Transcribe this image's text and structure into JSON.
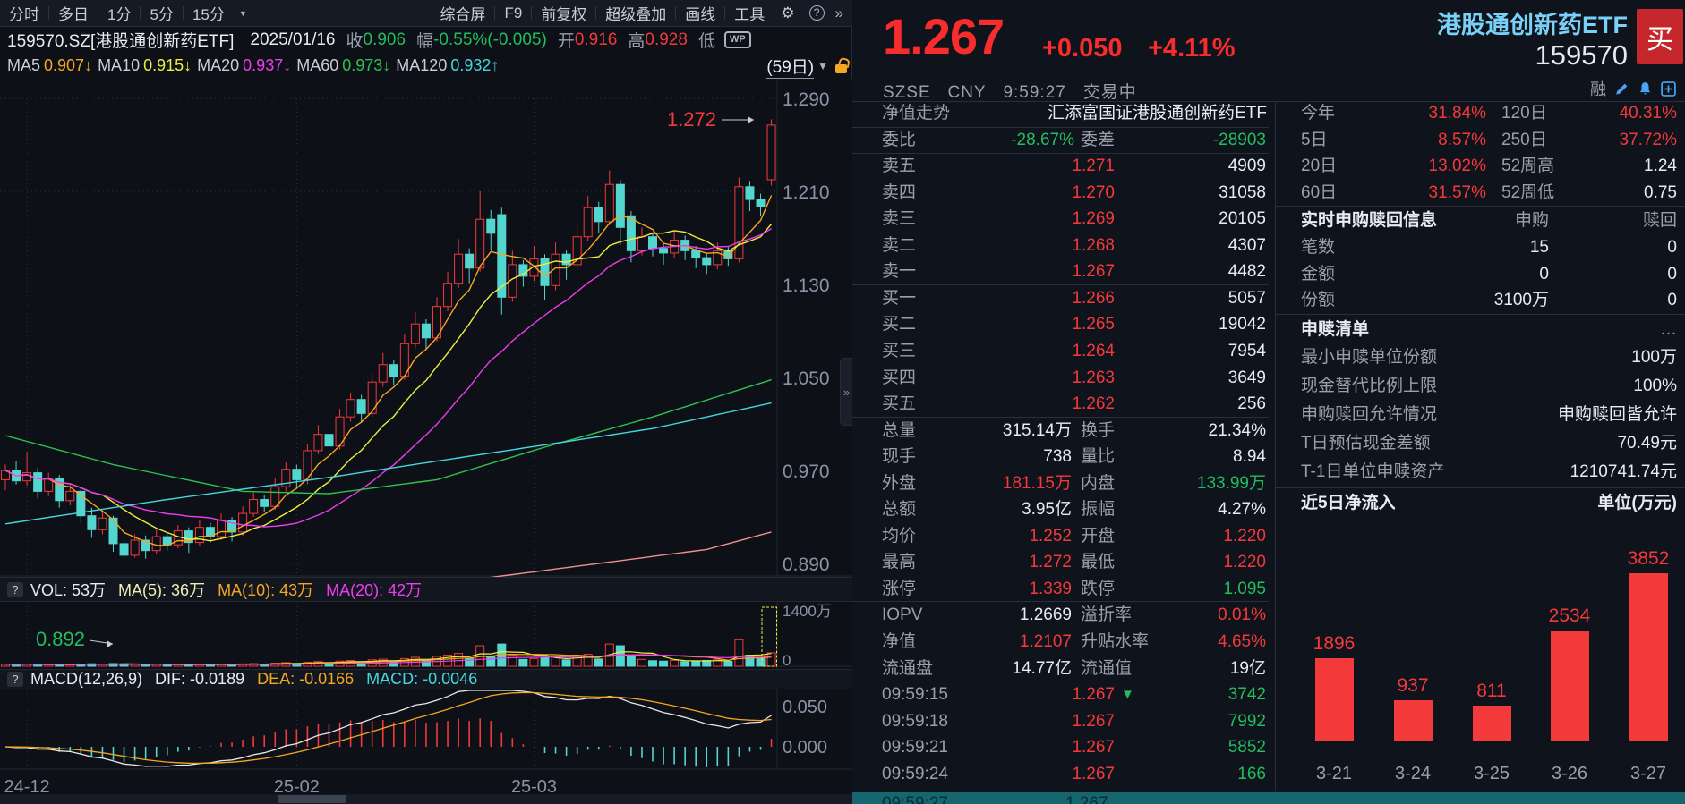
{
  "toolbar": {
    "tabs": [
      "分时",
      "多日",
      "1分",
      "5分",
      "15分"
    ],
    "menu": [
      "综合屏",
      "F9",
      "前复权",
      "超级叠加",
      "画线",
      "工具"
    ]
  },
  "infobar": {
    "symbol": "159570.SZ[港股通创新药ETF]",
    "date": "2025/01/16",
    "close_label": "收",
    "close": "0.906",
    "range_label": "幅",
    "range": "-0.55%(-0.005)",
    "open_label": "开",
    "open": "0.916",
    "high_label": "高",
    "high": "0.928",
    "low_label": "低",
    "wp_badge": "WP"
  },
  "ma_bar": {
    "items": [
      {
        "label": "MA5",
        "value": "0.907",
        "arrow": "↓",
        "color": "#f5a623"
      },
      {
        "label": "MA10",
        "value": "0.915",
        "arrow": "↓",
        "color": "#eeee3c"
      },
      {
        "label": "MA20",
        "value": "0.937",
        "arrow": "↓",
        "color": "#ee3cee"
      },
      {
        "label": "MA60",
        "value": "0.973",
        "arrow": "↓",
        "color": "#2fc14f"
      },
      {
        "label": "MA120",
        "value": "0.932",
        "arrow": "↑",
        "color": "#45d7dd"
      }
    ],
    "period": "(59日)"
  },
  "vol_header": {
    "prefix": "?",
    "items": [
      {
        "text": "VOL: 53万",
        "color": "#e8ebf2"
      },
      {
        "text": "MA(5): 36万",
        "color": "#eeeeb4"
      },
      {
        "text": "MA(10): 43万",
        "color": "#f5a623"
      },
      {
        "text": "MA(20): 42万",
        "color": "#ee3cee"
      }
    ]
  },
  "macd_header": {
    "prefix": "?",
    "items": [
      {
        "text": "MACD(12,26,9)",
        "color": "#e8ebf2"
      },
      {
        "text": "DIF: -0.0189",
        "color": "#e8ebf2"
      },
      {
        "text": "DEA: -0.0166",
        "color": "#f5a623"
      },
      {
        "text": "MACD: -0.0046",
        "color": "#45d7dd"
      }
    ]
  },
  "chart_data": [
    {
      "type": "candlestick",
      "title": "159570 港股通创新药ETF 日K(59日) 前复权",
      "y_axis": {
        "labels": [
          "1.290",
          "1.210",
          "1.130",
          "1.050",
          "0.970",
          "0.890"
        ],
        "range": [
          0.874,
          1.307
        ]
      },
      "x_ticks": [
        {
          "i": 2,
          "label": "24-12"
        },
        {
          "i": 27,
          "label": "25-02"
        },
        {
          "i": 49,
          "label": "25-03"
        }
      ],
      "annotations": {
        "high": {
          "text": "1.272",
          "color": "#f4393b"
        },
        "low": {
          "text": "0.892",
          "color": "#22bd5f"
        }
      },
      "vol_axis": {
        "top": "1400万",
        "bottom": "0"
      },
      "macd_axis": {
        "upper": "0.050",
        "zero": "0.000"
      },
      "ohlcv": [
        [
          0.962,
          0.975,
          0.953,
          0.97,
          45
        ],
        [
          0.97,
          0.978,
          0.958,
          0.961,
          38
        ],
        [
          0.961,
          0.986,
          0.957,
          0.968,
          52
        ],
        [
          0.968,
          0.972,
          0.946,
          0.952,
          41
        ],
        [
          0.952,
          0.968,
          0.948,
          0.963,
          36
        ],
        [
          0.963,
          0.966,
          0.938,
          0.944,
          47
        ],
        [
          0.944,
          0.958,
          0.94,
          0.952,
          33
        ],
        [
          0.952,
          0.955,
          0.925,
          0.931,
          52
        ],
        [
          0.931,
          0.938,
          0.912,
          0.919,
          58
        ],
        [
          0.919,
          0.934,
          0.915,
          0.929,
          40
        ],
        [
          0.929,
          0.931,
          0.9,
          0.907,
          62
        ],
        [
          0.907,
          0.913,
          0.892,
          0.897,
          55
        ],
        [
          0.897,
          0.915,
          0.895,
          0.91,
          48
        ],
        [
          0.91,
          0.914,
          0.894,
          0.901,
          35
        ],
        [
          0.901,
          0.919,
          0.898,
          0.913,
          42
        ],
        [
          0.913,
          0.917,
          0.901,
          0.906,
          30
        ],
        [
          0.906,
          0.923,
          0.903,
          0.918,
          44
        ],
        [
          0.918,
          0.921,
          0.899,
          0.908,
          38
        ],
        [
          0.908,
          0.927,
          0.905,
          0.921,
          46
        ],
        [
          0.921,
          0.925,
          0.908,
          0.913,
          33
        ],
        [
          0.913,
          0.933,
          0.91,
          0.927,
          50
        ],
        [
          0.927,
          0.93,
          0.909,
          0.917,
          41
        ],
        [
          0.917,
          0.939,
          0.914,
          0.933,
          55
        ],
        [
          0.933,
          0.951,
          0.93,
          0.945,
          62
        ],
        [
          0.945,
          0.949,
          0.934,
          0.939,
          44
        ],
        [
          0.939,
          0.963,
          0.936,
          0.956,
          70
        ],
        [
          0.956,
          0.977,
          0.952,
          0.971,
          85
        ],
        [
          0.971,
          0.975,
          0.954,
          0.962,
          58
        ],
        [
          0.962,
          0.993,
          0.958,
          0.987,
          95
        ],
        [
          0.987,
          1.009,
          0.984,
          1.001,
          110
        ],
        [
          1.001,
          1.005,
          0.983,
          0.991,
          75
        ],
        [
          0.991,
          1.023,
          0.988,
          1.016,
          120
        ],
        [
          1.016,
          1.037,
          1.012,
          1.031,
          135
        ],
        [
          1.031,
          1.035,
          1.011,
          1.019,
          90
        ],
        [
          1.019,
          1.053,
          1.016,
          1.046,
          150
        ],
        [
          1.046,
          1.071,
          1.042,
          1.061,
          165
        ],
        [
          1.061,
          1.065,
          1.043,
          1.051,
          105
        ],
        [
          1.051,
          1.087,
          1.048,
          1.079,
          180
        ],
        [
          1.079,
          1.106,
          1.075,
          1.096,
          210
        ],
        [
          1.096,
          1.1,
          1.074,
          1.084,
          140
        ],
        [
          1.084,
          1.119,
          1.081,
          1.111,
          230
        ],
        [
          1.111,
          1.141,
          1.107,
          1.131,
          260
        ],
        [
          1.131,
          1.169,
          1.127,
          1.156,
          300
        ],
        [
          1.156,
          1.161,
          1.131,
          1.144,
          190
        ],
        [
          1.144,
          1.21,
          1.141,
          1.186,
          480
        ],
        [
          1.186,
          1.194,
          1.159,
          1.174,
          220
        ],
        [
          1.19,
          1.196,
          1.104,
          1.119,
          520
        ],
        [
          1.119,
          1.159,
          1.115,
          1.147,
          250
        ],
        [
          1.147,
          1.151,
          1.128,
          1.137,
          160
        ],
        [
          1.137,
          1.163,
          1.133,
          1.152,
          180
        ],
        [
          1.152,
          1.156,
          1.117,
          1.129,
          200
        ],
        [
          1.129,
          1.166,
          1.125,
          1.156,
          210
        ],
        [
          1.156,
          1.16,
          1.134,
          1.147,
          150
        ],
        [
          1.147,
          1.181,
          1.143,
          1.171,
          230
        ],
        [
          1.171,
          1.206,
          1.167,
          1.196,
          280
        ],
        [
          1.196,
          1.201,
          1.174,
          1.184,
          170
        ],
        [
          1.184,
          1.228,
          1.181,
          1.216,
          520
        ],
        [
          1.216,
          1.22,
          1.164,
          1.179,
          480
        ],
        [
          1.189,
          1.193,
          1.149,
          1.159,
          240
        ],
        [
          1.159,
          1.179,
          1.155,
          1.171,
          160
        ],
        [
          1.171,
          1.175,
          1.154,
          1.161,
          130
        ],
        [
          1.161,
          1.165,
          1.147,
          1.157,
          120
        ],
        [
          1.157,
          1.176,
          1.153,
          1.168,
          140
        ],
        [
          1.168,
          1.172,
          1.151,
          1.159,
          110
        ],
        [
          1.159,
          1.163,
          1.144,
          1.153,
          125
        ],
        [
          1.153,
          1.157,
          1.139,
          1.147,
          135
        ],
        [
          1.147,
          1.166,
          1.143,
          1.159,
          150
        ],
        [
          1.159,
          1.163,
          1.146,
          1.152,
          115
        ],
        [
          1.152,
          1.222,
          1.149,
          1.214,
          620
        ],
        [
          1.214,
          1.219,
          1.193,
          1.203,
          260
        ],
        [
          1.203,
          1.208,
          1.189,
          1.197,
          180
        ],
        [
          1.22,
          1.272,
          1.215,
          1.267,
          315
        ]
      ],
      "overlays": {
        "ma60": [
          [
            0,
            1.0
          ],
          [
            10,
            0.975
          ],
          [
            22,
            0.952
          ],
          [
            30,
            0.95
          ],
          [
            40,
            0.962
          ],
          [
            50,
            0.99
          ],
          [
            60,
            1.016
          ],
          [
            71,
            1.048
          ]
        ],
        "ma120": [
          [
            0,
            0.924
          ],
          [
            15,
            0.945
          ],
          [
            30,
            0.964
          ],
          [
            45,
            0.985
          ],
          [
            60,
            1.006
          ],
          [
            71,
            1.028
          ]
        ],
        "ma250": [
          [
            28,
            0.862
          ],
          [
            45,
            0.878
          ],
          [
            55,
            0.89
          ],
          [
            65,
            0.902
          ],
          [
            71,
            0.917
          ]
        ]
      }
    },
    {
      "type": "bar",
      "title": "近5日净流入",
      "unit": "单位(万元)",
      "categories": [
        "3-21",
        "3-24",
        "3-25",
        "3-26",
        "3-27"
      ],
      "values": [
        1896,
        937,
        811,
        2534,
        3852
      ],
      "bar_color": "#f4393b",
      "ylim": [
        0,
        4700
      ]
    }
  ],
  "panel": {
    "price": "1.267",
    "change": "+0.050",
    "change_pct": "+4.11%",
    "name": "港股通创新药ETF",
    "code": "159570",
    "buy_label": "买",
    "exchange": "SZSE",
    "currency": "CNY",
    "time": "9:59:27",
    "status": "交易中",
    "rong": "融",
    "fund_row": {
      "label": "净值走势",
      "value": "汇添富国证港股通创新药ETF"
    },
    "weibi": {
      "label": "委比",
      "value": "-28.67%",
      "label2": "委差",
      "value2": "-28903"
    },
    "asks": [
      {
        "label": "卖五",
        "price": "1.271",
        "vol": "4909"
      },
      {
        "label": "卖四",
        "price": "1.270",
        "vol": "31058"
      },
      {
        "label": "卖三",
        "price": "1.269",
        "vol": "20105"
      },
      {
        "label": "卖二",
        "price": "1.268",
        "vol": "4307"
      },
      {
        "label": "卖一",
        "price": "1.267",
        "vol": "4482"
      }
    ],
    "bids": [
      {
        "label": "买一",
        "price": "1.266",
        "vol": "5057"
      },
      {
        "label": "买二",
        "price": "1.265",
        "vol": "19042"
      },
      {
        "label": "买三",
        "price": "1.264",
        "vol": "7954"
      },
      {
        "label": "买四",
        "price": "1.263",
        "vol": "3649"
      },
      {
        "label": "买五",
        "price": "1.262",
        "vol": "256"
      }
    ],
    "stats": [
      {
        "l1": "总量",
        "v1": "315.14万",
        "c1": "w",
        "l2": "换手",
        "v2": "21.34%",
        "c2": "w"
      },
      {
        "l1": "现手",
        "v1": "738",
        "c1": "w",
        "l2": "量比",
        "v2": "8.94",
        "c2": "w"
      },
      {
        "l1": "外盘",
        "v1": "181.15万",
        "c1": "r",
        "l2": "内盘",
        "v2": "133.99万",
        "c2": "g"
      },
      {
        "l1": "总额",
        "v1": "3.95亿",
        "c1": "w",
        "l2": "振幅",
        "v2": "4.27%",
        "c2": "w"
      },
      {
        "l1": "均价",
        "v1": "1.252",
        "c1": "r",
        "l2": "开盘",
        "v2": "1.220",
        "c2": "r"
      },
      {
        "l1": "最高",
        "v1": "1.272",
        "c1": "r",
        "l2": "最低",
        "v2": "1.220",
        "c2": "r"
      },
      {
        "l1": "涨停",
        "v1": "1.339",
        "c1": "r",
        "l2": "跌停",
        "v2": "1.095",
        "c2": "g"
      },
      {
        "l1": "IOPV",
        "v1": "1.2669",
        "c1": "w",
        "l2": "溢折率",
        "v2": "0.01%",
        "c2": "r"
      },
      {
        "l1": "净值",
        "v1": "1.2107",
        "c1": "r",
        "l2": "升贴水率",
        "v2": "4.65%",
        "c2": "r"
      },
      {
        "l1": "流通盘",
        "v1": "14.77亿",
        "c1": "w",
        "l2": "流通值",
        "v2": "19亿",
        "c2": "w"
      }
    ],
    "ticks": [
      {
        "time": "09:59:15",
        "price": "1.267",
        "arrow": "▼",
        "vol": "3742"
      },
      {
        "time": "09:59:18",
        "price": "1.267",
        "arrow": "",
        "vol": "7992"
      },
      {
        "time": "09:59:21",
        "price": "1.267",
        "arrow": "",
        "vol": "5852"
      },
      {
        "time": "09:59:24",
        "price": "1.267",
        "arrow": "",
        "vol": "166"
      }
    ],
    "partial_tick": {
      "time": "09:59:27",
      "price": "1.267"
    },
    "perf": [
      {
        "l1": "今年",
        "v1": "31.84%",
        "c1": "r",
        "l2": "120日",
        "v2": "40.31%",
        "c2": "r"
      },
      {
        "l1": "5日",
        "v1": "8.57%",
        "c1": "r",
        "l2": "250日",
        "v2": "37.72%",
        "c2": "r"
      },
      {
        "l1": "20日",
        "v1": "13.02%",
        "c1": "r",
        "l2": "52周高",
        "v2": "1.24",
        "c2": "w"
      },
      {
        "l1": "60日",
        "v1": "31.57%",
        "c1": "r",
        "l2": "52周低",
        "v2": "0.75",
        "c2": "w"
      }
    ],
    "subscription": {
      "title": "实时申购赎回信息",
      "col1": "申购",
      "col2": "赎回",
      "rows": [
        {
          "label": "笔数",
          "v1": "15",
          "v2": "0"
        },
        {
          "label": "金额",
          "v1": "0",
          "v2": "0"
        },
        {
          "label": "份额",
          "v1": "3100万",
          "v2": "0"
        }
      ]
    },
    "redemption": {
      "title": "申赎清单",
      "more": "…",
      "rows": [
        {
          "label": "最小申赎单位份额",
          "value": "100万"
        },
        {
          "label": "现金替代比例上限",
          "value": "100%"
        },
        {
          "label": "申购赎回允许情况",
          "value": "申购赎回皆允许"
        },
        {
          "label": "T日预估现金差额",
          "value": "70.49元"
        },
        {
          "label": "T-1日单位申赎资产",
          "value": "1210741.74元"
        }
      ]
    },
    "flow": {
      "title": "近5日净流入",
      "unit": "单位(万元)"
    }
  },
  "colors": {
    "up": "#f4393b",
    "down": "#53d6cf",
    "accent_yellow": "#eeee3c",
    "ma5": "#f5a623",
    "ma10": "#eeee3c",
    "ma20": "#ee3cee",
    "ma60": "#2fc14f",
    "ma120": "#45d7dd",
    "ma250": "#f08e8e",
    "dif": "#e8e8e8",
    "dea": "#f5a623"
  }
}
